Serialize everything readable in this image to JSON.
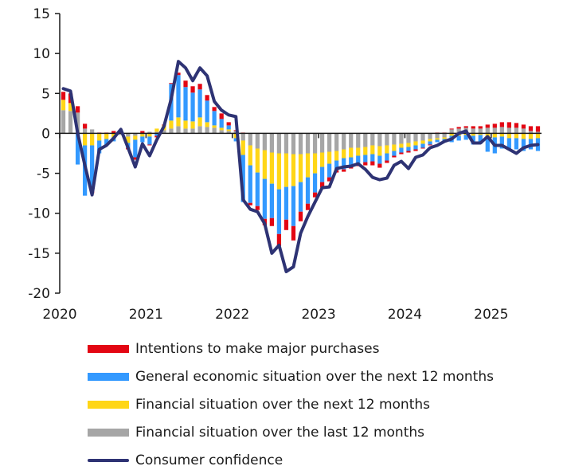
{
  "chart_data": {
    "type": "bar",
    "subtype": "stacked-bar-with-line",
    "title": "",
    "xlabel": "",
    "ylabel": "",
    "ylim": [
      -20,
      15
    ],
    "yticks": [
      15,
      10,
      5,
      0,
      -5,
      -10,
      -15,
      -20
    ],
    "ytick_labels": [
      "15",
      "10",
      "5",
      "0",
      "-5",
      "-10",
      "-15",
      "-20"
    ],
    "xtick_labels": [
      "2020",
      "2021",
      "2022",
      "2023",
      "2024",
      "2025"
    ],
    "start": "2020-01",
    "frequency": "monthly",
    "grid": false,
    "legend_position": "bottom",
    "colors": {
      "purchases": "#e30613",
      "general": "#3399ff",
      "fin_next": "#ffd617",
      "fin_last": "#a6a6a6",
      "confidence": "#2e3374"
    },
    "series": [
      {
        "key": "purchases",
        "name": "Intentions to make major purchases",
        "values": [
          1.0,
          1.2,
          0.8,
          0.6,
          -0.6,
          0.1,
          0.1,
          0.3,
          0.3,
          -0.2,
          -0.3,
          0.3,
          -0.1,
          -0.2,
          0.1,
          0.1,
          0.3,
          0.8,
          0.8,
          0.7,
          0.7,
          0.5,
          0.7,
          0.4,
          0.1,
          0.1,
          -0.3,
          -0.5,
          -0.8,
          -1.0,
          -1.5,
          -1.3,
          -1.8,
          -1.2,
          -0.8,
          -0.6,
          -0.7,
          -0.5,
          -0.3,
          -0.3,
          -0.3,
          -0.3,
          -0.4,
          -0.5,
          -0.5,
          -0.3,
          -0.2,
          -0.2,
          -0.2,
          -0.2,
          -0.1,
          -0.1,
          0.1,
          0.1,
          0.1,
          0.2,
          0.2,
          0.3,
          0.3,
          0.4,
          0.5,
          0.6,
          0.7,
          0.6,
          0.5,
          0.6,
          0.7
        ]
      },
      {
        "key": "general",
        "name": "General economic situation over the next 12 months",
        "values": [
          0.0,
          0.0,
          -3.9,
          -6.3,
          -5.4,
          -1.6,
          -0.8,
          -0.5,
          0.0,
          -0.6,
          -2.2,
          -0.7,
          -1.0,
          -0.3,
          0.0,
          4.6,
          5.3,
          4.2,
          3.6,
          3.5,
          2.7,
          1.8,
          1.1,
          0.5,
          -0.4,
          -5.9,
          -4.7,
          -4.2,
          -5.0,
          -4.3,
          -5.6,
          -4.1,
          -5.0,
          -3.7,
          -3.3,
          -2.4,
          -1.9,
          -1.7,
          -1.2,
          -1.4,
          -1.1,
          -1.0,
          -0.9,
          -0.9,
          -1.0,
          -0.9,
          -0.6,
          -0.6,
          -0.5,
          -0.5,
          -0.5,
          -0.4,
          -0.3,
          -0.3,
          -0.8,
          -0.6,
          -0.6,
          -1.1,
          -1.1,
          -1.9,
          -2.0,
          -1.5,
          -1.5,
          -1.4,
          -1.5,
          -1.3,
          -1.6
        ]
      },
      {
        "key": "fin_next",
        "name": "Financial situation over the next 12 months",
        "values": [
          1.3,
          1.0,
          0.0,
          -1.5,
          -1.5,
          -0.9,
          -0.7,
          -0.5,
          0.0,
          -0.8,
          -0.5,
          -0.3,
          -0.4,
          0.4,
          0.6,
          1.0,
          1.1,
          1.0,
          0.9,
          1.1,
          0.6,
          0.3,
          0.3,
          0.2,
          -0.6,
          -1.8,
          -2.5,
          -3.0,
          -3.6,
          -3.9,
          -4.5,
          -4.2,
          -4.0,
          -3.5,
          -3.0,
          -2.5,
          -1.8,
          -1.5,
          -1.2,
          -1.1,
          -1.2,
          -1.0,
          -1.0,
          -1.1,
          -1.2,
          -1.0,
          -0.8,
          -0.5,
          -0.5,
          -0.5,
          -0.4,
          -0.3,
          -0.2,
          -0.2,
          -0.3,
          -0.3,
          -0.2,
          -0.3,
          -0.2,
          -0.4,
          -0.5,
          -0.4,
          -0.6,
          -0.6,
          -0.7,
          -0.7,
          -0.6
        ]
      },
      {
        "key": "fin_last",
        "name": "Financial situation over the last 12 months",
        "values": [
          2.9,
          2.8,
          2.6,
          0.6,
          0.5,
          0.0,
          0.0,
          0.0,
          -0.2,
          -0.4,
          -0.3,
          -0.1,
          0.2,
          0.2,
          0.4,
          0.6,
          0.9,
          0.6,
          0.6,
          0.9,
          0.8,
          0.7,
          0.4,
          0.3,
          0.3,
          -0.9,
          -1.5,
          -1.9,
          -2.1,
          -2.4,
          -2.5,
          -2.5,
          -2.6,
          -2.6,
          -2.5,
          -2.5,
          -2.4,
          -2.3,
          -2.2,
          -2.0,
          -1.8,
          -1.8,
          -1.7,
          -1.5,
          -1.6,
          -1.5,
          -1.4,
          -1.3,
          -1.2,
          -1.0,
          -0.9,
          -0.7,
          -0.6,
          -0.5,
          0.5,
          0.6,
          0.7,
          0.6,
          0.6,
          0.7,
          0.7,
          0.8,
          0.7,
          0.7,
          0.6,
          0.3,
          0.2
        ]
      }
    ],
    "line": {
      "key": "confidence",
      "name": "Consumer confidence",
      "values": [
        5.6,
        5.3,
        0.0,
        -4.0,
        -7.7,
        -2.0,
        -1.5,
        -0.6,
        0.5,
        -1.8,
        -4.2,
        -1.3,
        -2.8,
        -0.8,
        0.9,
        4.3,
        9.0,
        8.2,
        6.6,
        8.2,
        7.2,
        4.0,
        2.9,
        2.3,
        2.1,
        -8.3,
        -9.5,
        -9.8,
        -11.3,
        -15.0,
        -14.0,
        -17.3,
        -16.7,
        -12.5,
        -10.4,
        -8.6,
        -6.8,
        -6.7,
        -4.4,
        -4.2,
        -4.1,
        -3.8,
        -4.5,
        -5.5,
        -5.8,
        -5.6,
        -4.0,
        -3.5,
        -4.4,
        -3.0,
        -2.7,
        -1.8,
        -1.5,
        -1.0,
        -0.7,
        0.0,
        0.3,
        -1.2,
        -1.2,
        -0.4,
        -1.5,
        -1.5,
        -2.0,
        -2.5,
        -1.8,
        -1.5,
        -1.4
      ]
    }
  }
}
